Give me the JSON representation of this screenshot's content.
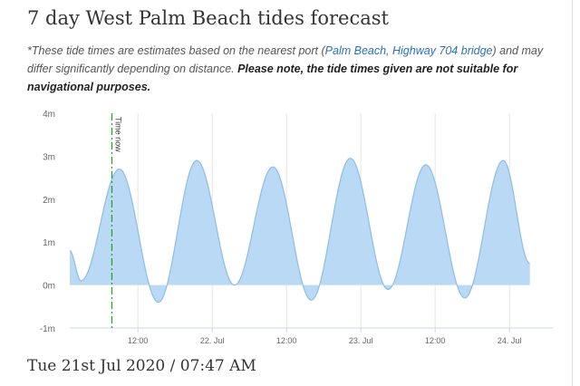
{
  "page": {
    "title": "7 day West Palm Beach tides forecast",
    "disclaimer_prefix": "*These tide times are estimates based on the nearest port (",
    "port_link": "Palm Beach, Highway 704 bridge",
    "disclaimer_middle": ") and may differ significantly depending on distance. ",
    "disclaimer_bold": "Please note, the tide times given are not suitable for navigational purposes.",
    "date_time": "Tue 21st Jul 2020 / 07:47 AM"
  },
  "colors": {
    "fill": "#b9d9f5",
    "line": "#8ebde8",
    "now_line": "#2ca02c",
    "grid": "#e6e6e6"
  },
  "chart_data": {
    "type": "area",
    "title": "",
    "xlabel": "",
    "ylabel": "",
    "ylim": [
      -1,
      4
    ],
    "y_ticks": [
      "-1m",
      "0m",
      "1m",
      "2m",
      "3m",
      "4m"
    ],
    "x_ticks": [
      "12:00",
      "22. Jul",
      "12:00",
      "23. Jul",
      "12:00",
      "24. Jul"
    ],
    "x_tick_hours": [
      36,
      48,
      60,
      72,
      84,
      96
    ],
    "x_range_hours": [
      25,
      103
    ],
    "now_hours": 31.8,
    "now_label": "Time now",
    "extremes": [
      {
        "t": 25.0,
        "h": 0.8
      },
      {
        "t": 26.8,
        "h": 0.1
      },
      {
        "t": 33.0,
        "h": 2.7
      },
      {
        "t": 39.3,
        "h": -0.4
      },
      {
        "t": 45.5,
        "h": 2.9
      },
      {
        "t": 51.6,
        "h": 0.0
      },
      {
        "t": 57.8,
        "h": 2.75
      },
      {
        "t": 64.0,
        "h": -0.35
      },
      {
        "t": 70.3,
        "h": 2.95
      },
      {
        "t": 76.4,
        "h": -0.1
      },
      {
        "t": 82.5,
        "h": 2.8
      },
      {
        "t": 88.8,
        "h": -0.3
      },
      {
        "t": 95.0,
        "h": 2.9
      },
      {
        "t": 99.3,
        "h": 0.5
      }
    ]
  }
}
